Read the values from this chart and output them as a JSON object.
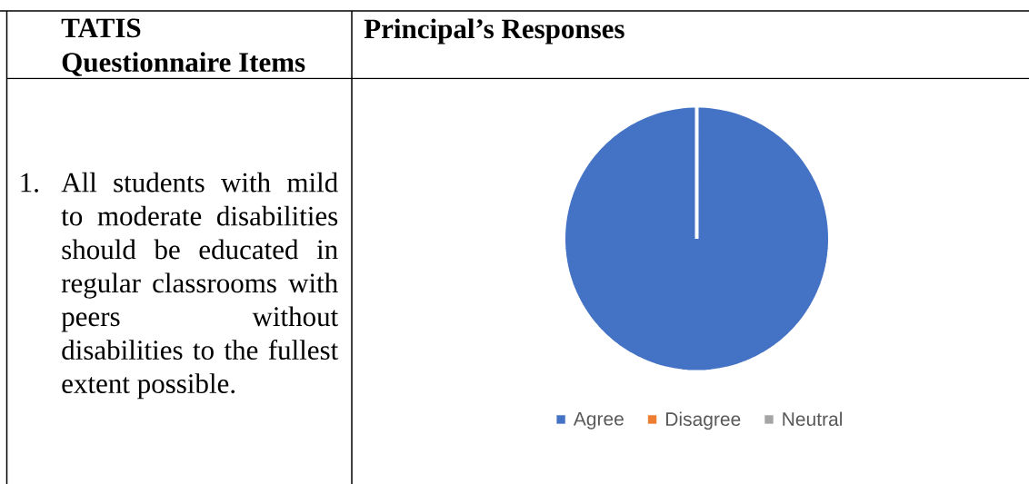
{
  "chart_data": {
    "type": "pie",
    "title": "Principal’s Responses",
    "categories": [
      "Agree",
      "Disagree",
      "Neutral"
    ],
    "values": [
      100,
      0,
      0
    ],
    "colors": [
      "#4472c4",
      "#ed7d31",
      "#a5a5a5"
    ],
    "legend": "bottom",
    "annotations": [
      "TATIS Questionnaire Items",
      "1.",
      "All students with mild to moderate disabilities should be educated in regular classrooms with peers without disabilities to the fullest extent possible."
    ]
  }
}
